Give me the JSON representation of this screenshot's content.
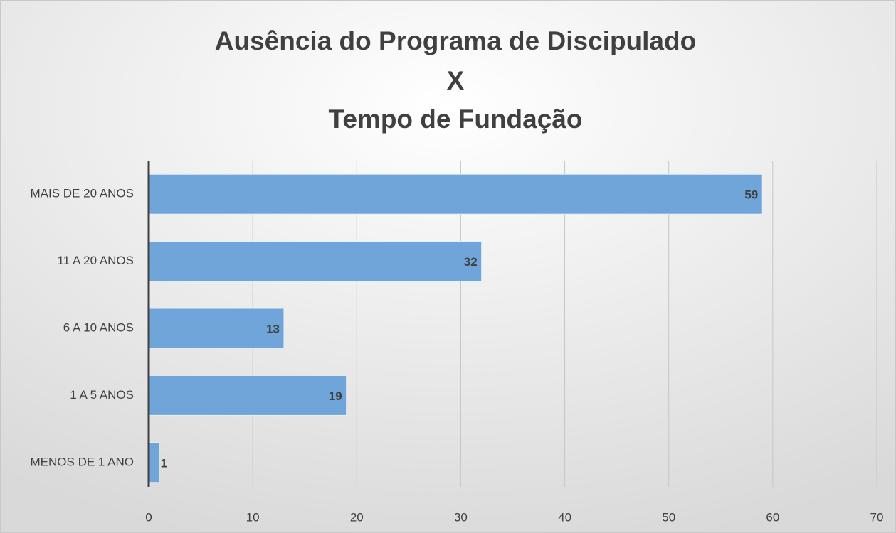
{
  "chart_data": {
    "type": "hbar",
    "title": [
      "Ausência do Programa de Discipulado",
      "X",
      "Tempo de Fundação"
    ],
    "categories": [
      "MAIS DE 20 ANOS",
      "11 A 20 ANOS",
      "6 A 10 ANOS",
      "1 A 5 ANOS",
      "MENOS DE 1 ANO"
    ],
    "values": [
      59,
      32,
      13,
      19,
      1
    ],
    "color": "#6fa5d9",
    "xlim": [
      0,
      70
    ],
    "xticks": [
      0,
      10,
      20,
      30,
      40,
      50,
      60,
      70
    ],
    "grid": true
  }
}
